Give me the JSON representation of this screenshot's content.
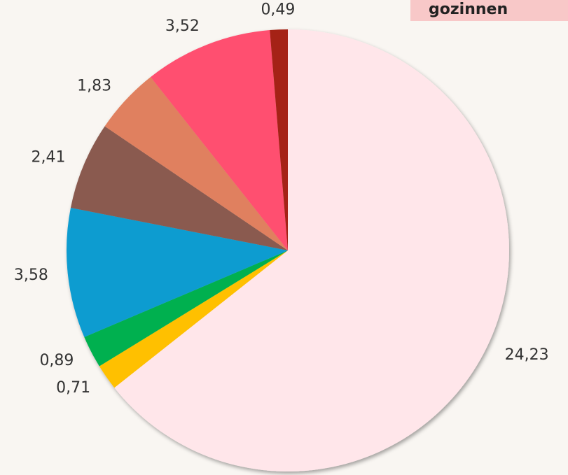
{
  "chart_data": {
    "type": "pie",
    "values": [
      24.23,
      0.71,
      0.89,
      3.58,
      2.41,
      1.83,
      3.52,
      0.49
    ],
    "value_labels": [
      "24,23",
      "0,71",
      "0,89",
      "3,58",
      "2,41",
      "1,83",
      "3,52",
      "0,49"
    ],
    "colors": [
      "#ffe6ea",
      "#ffc000",
      "#00b050",
      "#0a9cd0",
      "#8a5a50",
      "#e0805e",
      "#ff4f70",
      "#a52212"
    ]
  },
  "tooltip": {
    "text": "gozinnen"
  }
}
